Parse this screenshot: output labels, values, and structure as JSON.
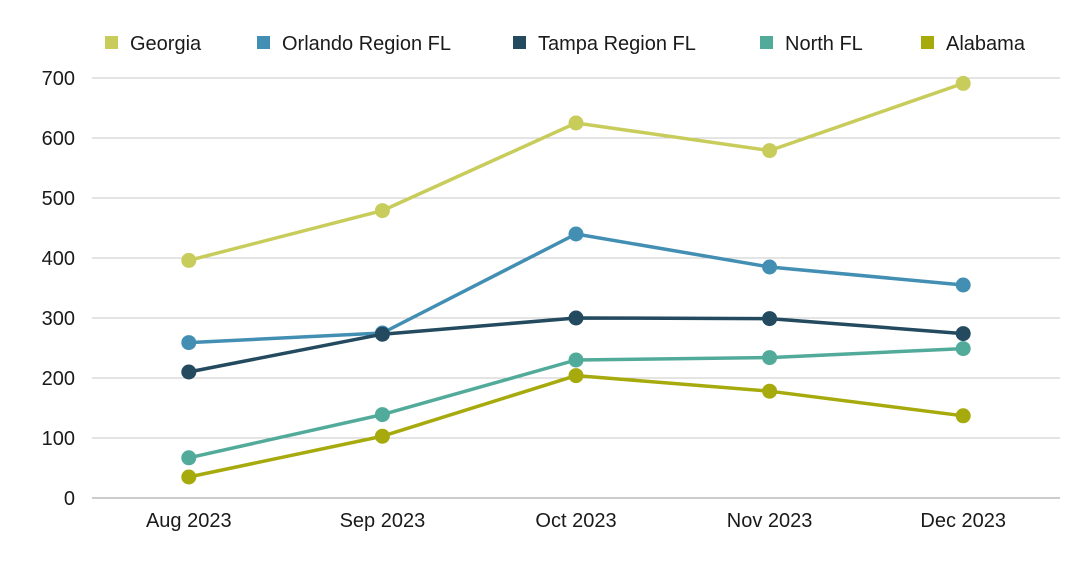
{
  "chart_data": {
    "type": "line",
    "title": "",
    "xlabel": "",
    "ylabel": "",
    "categories": [
      "Aug 2023",
      "Sep 2023",
      "Oct 2023",
      "Nov 2023",
      "Dec 2023"
    ],
    "ylim": [
      0,
      700
    ],
    "yticks": [
      0,
      100,
      200,
      300,
      400,
      500,
      600,
      700
    ],
    "grid": true,
    "legend_position": "top",
    "series": [
      {
        "name": "Georgia",
        "color": "#c8cc5a",
        "values": [
          396,
          479,
          625,
          579,
          691
        ]
      },
      {
        "name": "Orlando Region FL",
        "color": "#438fb4",
        "values": [
          259,
          275,
          440,
          385,
          355
        ]
      },
      {
        "name": "Tampa Region FL",
        "color": "#234a5f",
        "values": [
          210,
          273,
          300,
          299,
          274
        ]
      },
      {
        "name": "North FL",
        "color": "#52ab9a",
        "values": [
          67,
          139,
          230,
          234,
          249
        ]
      },
      {
        "name": "Alabama",
        "color": "#a6aa0c",
        "values": [
          35,
          103,
          204,
          178,
          137
        ]
      }
    ]
  }
}
